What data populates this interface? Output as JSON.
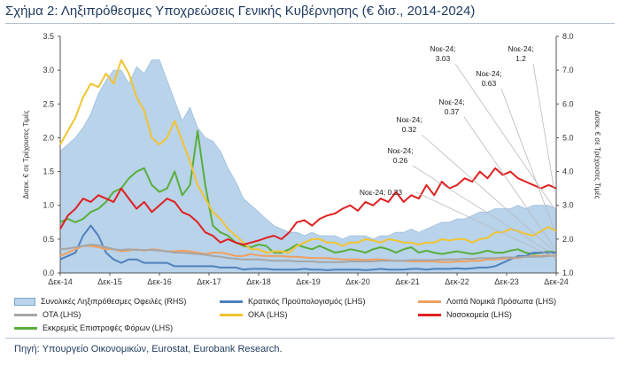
{
  "title": "Σχήμα 2: Ληξιπρόθεσμες Υποχρεώσεις Γενικής Κυβέρνησης (€ δισ., 2014-2024)",
  "source": "Πηγή: Υπουργείο Οικονομικών, Eurostat, Eurobank Research.",
  "chart_data": {
    "type": "line",
    "ylabel_left": "",
    "ylabel_right": "Δισεκ. € σε Τρέχουσες Τιμές",
    "ylabel_left_text": "Δισεκ. € σε Τρέχουσες Τιμές",
    "ylim_left": [
      0,
      3.5
    ],
    "ylim_right": [
      1.0,
      8.0
    ],
    "yticks_left": [
      "0.0",
      "0.5",
      "1.0",
      "1.5",
      "2.0",
      "2.5",
      "3.0",
      "3.5"
    ],
    "yticks_right": [
      "1.0",
      "2.0",
      "3.0",
      "4.0",
      "5.0",
      "6.0",
      "7.0",
      "8.0"
    ],
    "x_ticks": [
      "Δεκ-14",
      "Δεκ-15",
      "Δεκ-16",
      "Δεκ-17",
      "Δεκ-18",
      "Δεκ-19",
      "Δεκ-20",
      "Δεκ-21",
      "Δεκ-22",
      "Δεκ-23",
      "Δεκ-24"
    ],
    "series": [
      {
        "name": "Συνολικές Ληξιπρόθεσμες Οφειλές (RHS)",
        "kind": "area",
        "axis": "right",
        "color": "#b8d3ea",
        "values": [
          4.6,
          4.8,
          5.0,
          5.3,
          5.7,
          6.3,
          6.7,
          7.0,
          7.0,
          6.6,
          7.1,
          6.9,
          7.3,
          7.3,
          6.7,
          6.1,
          5.5,
          5.9,
          5.3,
          5.0,
          4.9,
          4.6,
          4.1,
          3.7,
          3.2,
          3.0,
          2.8,
          2.6,
          2.4,
          2.3,
          2.2,
          2.2,
          2.1,
          2.2,
          2.1,
          2.1,
          2.1,
          2.0,
          2.1,
          2.1,
          2.1,
          2.0,
          2.1,
          2.1,
          2.2,
          2.2,
          2.3,
          2.2,
          2.3,
          2.4,
          2.5,
          2.5,
          2.6,
          2.6,
          2.7,
          2.8,
          2.8,
          2.9,
          2.9,
          2.9,
          3.0,
          2.9,
          3.0,
          3.0,
          3.0,
          2.9
        ]
      },
      {
        "name": "Κρατικός Προϋπολογισμός (LHS)",
        "kind": "line",
        "axis": "left",
        "color": "#4f81bd",
        "values": [
          0.2,
          0.25,
          0.3,
          0.55,
          0.7,
          0.55,
          0.3,
          0.2,
          0.15,
          0.2,
          0.2,
          0.15,
          0.15,
          0.15,
          0.15,
          0.1,
          0.1,
          0.1,
          0.1,
          0.1,
          0.1,
          0.08,
          0.08,
          0.08,
          0.05,
          0.06,
          0.06,
          0.06,
          0.05,
          0.05,
          0.05,
          0.05,
          0.06,
          0.05,
          0.05,
          0.04,
          0.05,
          0.05,
          0.05,
          0.05,
          0.04,
          0.05,
          0.06,
          0.05,
          0.05,
          0.05,
          0.06,
          0.06,
          0.05,
          0.06,
          0.06,
          0.06,
          0.07,
          0.06,
          0.07,
          0.08,
          0.08,
          0.1,
          0.15,
          0.2,
          0.25,
          0.25,
          0.3,
          0.3,
          0.3,
          0.3
        ]
      },
      {
        "name": "Λοιπά Νομικά Πρόσωπα (LHS)",
        "kind": "line",
        "axis": "left",
        "color": "#f0a060",
        "values": [
          0.25,
          0.3,
          0.35,
          0.4,
          0.4,
          0.38,
          0.35,
          0.35,
          0.32,
          0.33,
          0.35,
          0.33,
          0.35,
          0.34,
          0.32,
          0.32,
          0.33,
          0.32,
          0.3,
          0.28,
          0.3,
          0.3,
          0.28,
          0.25,
          0.25,
          0.28,
          0.26,
          0.25,
          0.25,
          0.25,
          0.24,
          0.24,
          0.23,
          0.22,
          0.22,
          0.22,
          0.21,
          0.2,
          0.2,
          0.2,
          0.19,
          0.2,
          0.2,
          0.19,
          0.18,
          0.18,
          0.17,
          0.17,
          0.17,
          0.17,
          0.16,
          0.16,
          0.17,
          0.17,
          0.18,
          0.18,
          0.2,
          0.2,
          0.21,
          0.22,
          0.22,
          0.24,
          0.25,
          0.25,
          0.26,
          0.26
        ]
      },
      {
        "name": "ΟΤΑ (LHS)",
        "kind": "line",
        "axis": "left",
        "color": "#a6a6a6",
        "values": [
          0.35,
          0.36,
          0.38,
          0.4,
          0.42,
          0.41,
          0.38,
          0.35,
          0.34,
          0.35,
          0.34,
          0.34,
          0.34,
          0.33,
          0.32,
          0.3,
          0.3,
          0.29,
          0.28,
          0.27,
          0.25,
          0.24,
          0.22,
          0.21,
          0.2,
          0.2,
          0.2,
          0.19,
          0.18,
          0.18,
          0.18,
          0.17,
          0.17,
          0.17,
          0.16,
          0.16,
          0.16,
          0.16,
          0.17,
          0.17,
          0.17,
          0.17,
          0.18,
          0.18,
          0.18,
          0.18,
          0.19,
          0.19,
          0.19,
          0.19,
          0.2,
          0.2,
          0.2,
          0.21,
          0.21,
          0.22,
          0.22,
          0.22,
          0.23,
          0.23,
          0.23,
          0.24,
          0.24,
          0.24,
          0.25,
          0.25
        ]
      },
      {
        "name": "ΟΚΑ (LHS)",
        "kind": "line",
        "axis": "left",
        "color": "#f2c431",
        "values": [
          1.9,
          2.1,
          2.3,
          2.6,
          2.8,
          2.75,
          2.95,
          2.8,
          3.15,
          2.95,
          2.6,
          2.4,
          2.0,
          1.9,
          2.0,
          2.25,
          1.95,
          1.65,
          1.3,
          1.1,
          0.9,
          0.8,
          0.65,
          0.55,
          0.45,
          0.35,
          0.35,
          0.3,
          0.32,
          0.32,
          0.3,
          0.4,
          0.45,
          0.5,
          0.5,
          0.45,
          0.45,
          0.4,
          0.45,
          0.45,
          0.5,
          0.48,
          0.45,
          0.5,
          0.48,
          0.45,
          0.45,
          0.42,
          0.45,
          0.45,
          0.5,
          0.48,
          0.5,
          0.5,
          0.45,
          0.5,
          0.52,
          0.6,
          0.6,
          0.65,
          0.62,
          0.58,
          0.55,
          0.62,
          0.68,
          0.62
        ]
      },
      {
        "name": "Νοσοκομεία (LHS)",
        "kind": "line",
        "axis": "left",
        "color": "#e02020",
        "values": [
          0.65,
          0.85,
          0.95,
          1.1,
          1.05,
          1.15,
          1.1,
          1.05,
          1.25,
          1.1,
          0.95,
          1.05,
          0.9,
          1.0,
          1.1,
          1.05,
          0.9,
          0.85,
          0.75,
          0.6,
          0.55,
          0.45,
          0.5,
          0.45,
          0.42,
          0.45,
          0.48,
          0.52,
          0.55,
          0.5,
          0.6,
          0.75,
          0.78,
          0.7,
          0.8,
          0.85,
          0.88,
          0.95,
          1.0,
          0.92,
          1.05,
          1.0,
          1.1,
          1.05,
          1.2,
          1.05,
          1.15,
          1.1,
          1.3,
          1.15,
          1.35,
          1.25,
          1.3,
          1.4,
          1.35,
          1.5,
          1.4,
          1.55,
          1.45,
          1.5,
          1.4,
          1.35,
          1.3,
          1.25,
          1.3,
          1.25
        ]
      },
      {
        "name": "Εκκρεμείς Επιστροφές Φόρων (LHS)",
        "kind": "line",
        "axis": "left",
        "color": "#5aae3b",
        "values": [
          0.75,
          0.8,
          0.75,
          0.8,
          0.9,
          0.95,
          1.05,
          1.2,
          1.25,
          1.4,
          1.5,
          1.55,
          1.3,
          1.2,
          1.25,
          1.5,
          1.15,
          1.3,
          2.1,
          1.3,
          0.7,
          0.6,
          0.55,
          0.45,
          0.4,
          0.38,
          0.42,
          0.4,
          0.3,
          0.3,
          0.35,
          0.42,
          0.38,
          0.35,
          0.4,
          0.35,
          0.3,
          0.32,
          0.35,
          0.33,
          0.3,
          0.35,
          0.38,
          0.35,
          0.3,
          0.35,
          0.38,
          0.3,
          0.33,
          0.3,
          0.28,
          0.3,
          0.32,
          0.3,
          0.28,
          0.3,
          0.33,
          0.3,
          0.3,
          0.33,
          0.35,
          0.3,
          0.28,
          0.3,
          0.32,
          0.3
        ]
      }
    ],
    "annotations": [
      "Νοε-24;",
      "3.03",
      "Νοε-24;",
      "1.2",
      "Νοε-24;",
      "0.63",
      "Νοε-24;",
      "0.37",
      "Νοε-24;",
      "0.32",
      "Νοε-24;",
      "0.26",
      "Νοε-24; 0.23"
    ]
  },
  "legend": {
    "area": "Συνολικές Ληξιπρόθεσμες Οφειλές (RHS)",
    "l1": "Κρατικός Προϋπολογισμός (LHS)",
    "l2": "Λοιπά Νομικά Πρόσωπα (LHS)",
    "l3": "ΟΤΑ (LHS)",
    "l4": "ΟΚΑ (LHS)",
    "l5": "Νοσοκομεία (LHS)",
    "l6": "Εκκρεμείς Επιστροφές Φόρων (LHS)"
  }
}
